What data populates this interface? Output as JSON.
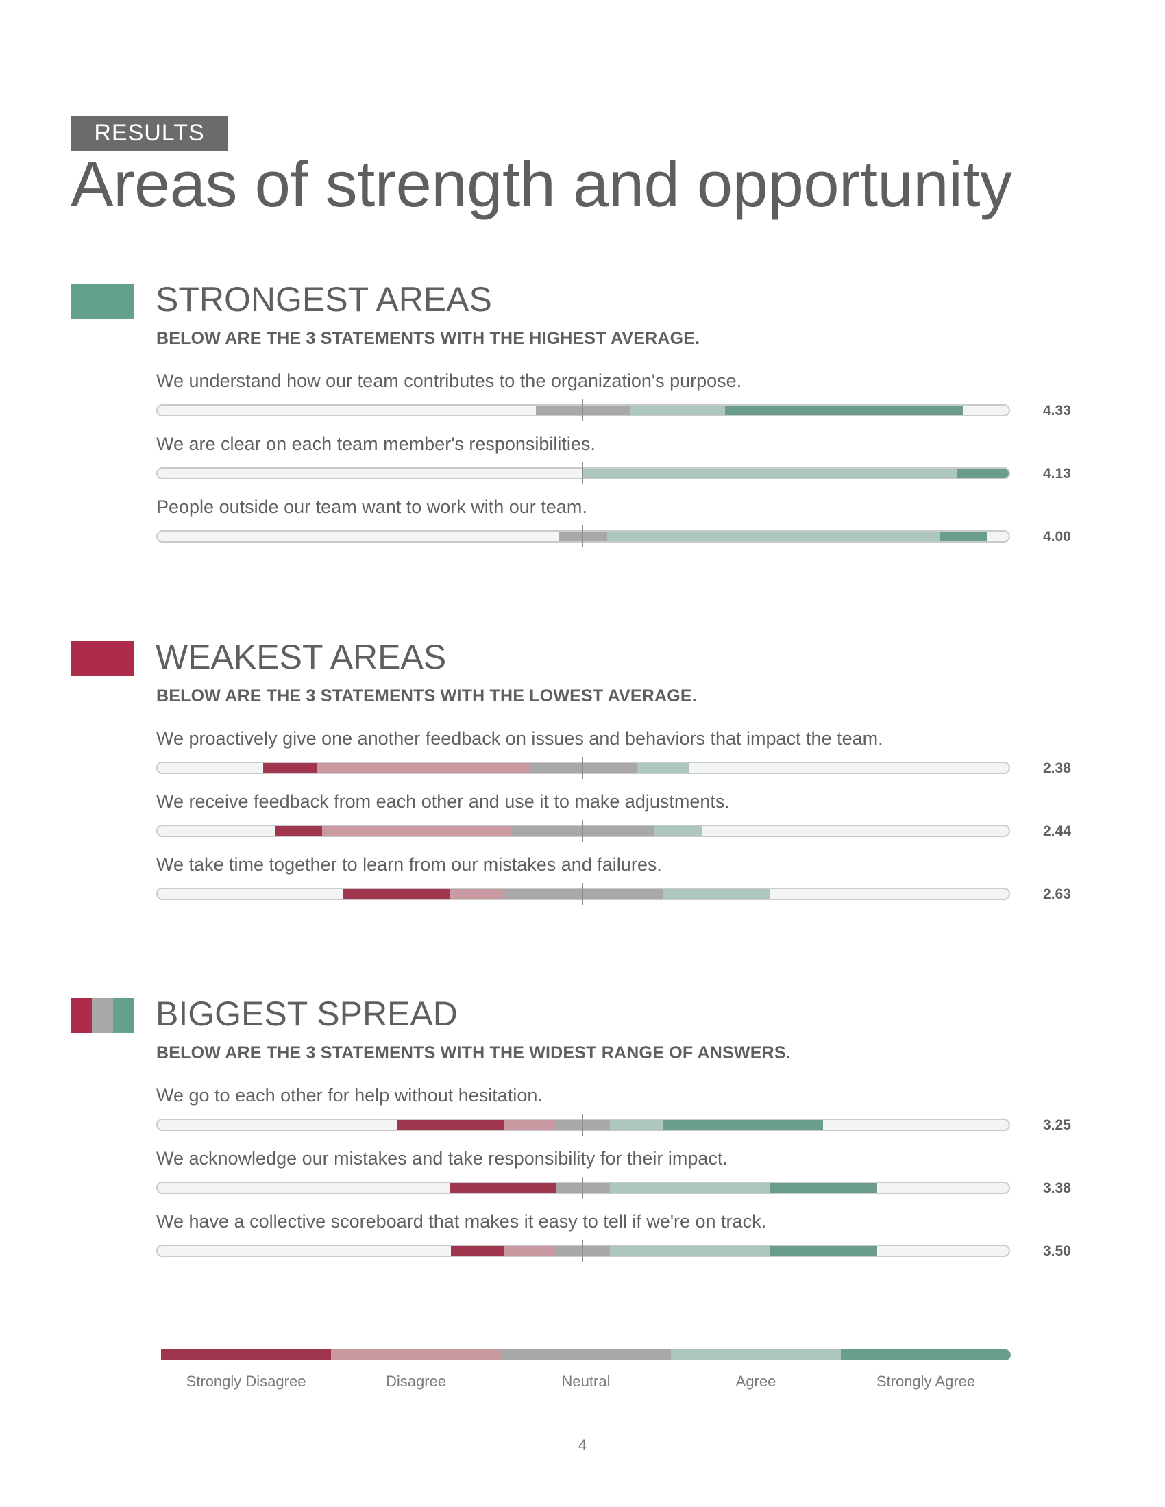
{
  "header": {
    "tag": "RESULTS",
    "title": "Areas of strength and opportunity"
  },
  "colors": {
    "strongly_disagree": "#a0364e",
    "disagree": "#c99aa2",
    "neutral": "#a8a8a8",
    "agree": "#adc7bd",
    "strongly_agree": "#6a9e8a",
    "strongest_swatch": "#64a18b",
    "weakest_swatch": "#ad2c4a"
  },
  "sections": [
    {
      "title": "STRONGEST AREAS",
      "subtitle": "BELOW ARE THE 3 STATEMENTS WITH THE HIGHEST AVERAGE.",
      "statements": [
        {
          "text": "We understand how our team contributes to the organization's purpose.",
          "score": "4.33",
          "distribution": {
            "strongly_disagree": 0,
            "disagree": 0,
            "neutral": 0.111,
            "agree": 0.111,
            "strongly_agree": 0.278
          }
        },
        {
          "text": "We are clear on each team member's responsibilities.",
          "score": "4.13",
          "distribution": {
            "strongly_disagree": 0,
            "disagree": 0,
            "neutral": 0,
            "agree": 0.438,
            "strongly_agree": 0.062
          }
        },
        {
          "text": "People outside our team want to work with our team.",
          "score": "4.00",
          "distribution": {
            "strongly_disagree": 0,
            "disagree": 0,
            "neutral": 0.056,
            "agree": 0.389,
            "strongly_agree": 0.056
          }
        }
      ]
    },
    {
      "title": "WEAKEST AREAS",
      "subtitle": "BELOW ARE THE 3 STATEMENTS WITH THE LOWEST AVERAGE.",
      "statements": [
        {
          "text": "We proactively give one another feedback on issues and behaviors that impact the team.",
          "score": "2.38",
          "distribution": {
            "strongly_disagree": 0.062,
            "disagree": 0.25,
            "neutral": 0.125,
            "agree": 0.062,
            "strongly_agree": 0
          }
        },
        {
          "text": "We receive feedback from each other and use it to make adjustments.",
          "score": "2.44",
          "distribution": {
            "strongly_disagree": 0.056,
            "disagree": 0.222,
            "neutral": 0.167,
            "agree": 0.056,
            "strongly_agree": 0
          }
        },
        {
          "text": "We take time together to learn from our mistakes and failures.",
          "score": "2.63",
          "distribution": {
            "strongly_disagree": 0.125,
            "disagree": 0.062,
            "neutral": 0.188,
            "agree": 0.125,
            "strongly_agree": 0
          }
        }
      ]
    },
    {
      "title": "BIGGEST SPREAD",
      "subtitle": "BELOW ARE THE 3 STATEMENTS WITH THE WIDEST RANGE OF ANSWERS.",
      "statements": [
        {
          "text": "We go to each other for help without hesitation.",
          "score": "3.25",
          "distribution": {
            "strongly_disagree": 0.125,
            "disagree": 0.062,
            "neutral": 0.062,
            "agree": 0.062,
            "strongly_agree": 0.188
          }
        },
        {
          "text": "We acknowledge our mistakes and take responsibility for their impact.",
          "score": "3.38",
          "distribution": {
            "strongly_disagree": 0.125,
            "disagree": 0,
            "neutral": 0.062,
            "agree": 0.188,
            "strongly_agree": 0.125
          }
        },
        {
          "text": "We have a collective scoreboard that makes it easy to tell if we're on track.",
          "score": "3.50",
          "distribution": {
            "strongly_disagree": 0.062,
            "disagree": 0.062,
            "neutral": 0.062,
            "agree": 0.188,
            "strongly_agree": 0.125
          }
        }
      ]
    }
  ],
  "legend": [
    "Strongly Disagree",
    "Disagree",
    "Neutral",
    "Agree",
    "Strongly Agree"
  ],
  "page_number": "4"
}
